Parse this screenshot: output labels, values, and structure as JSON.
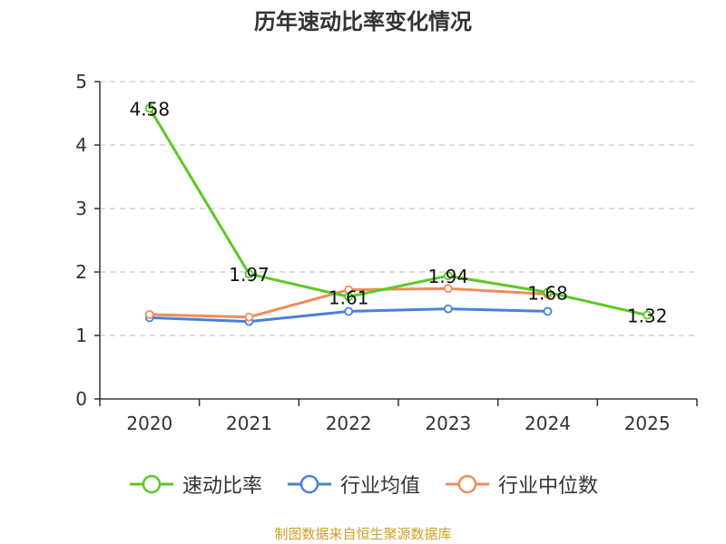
{
  "chart_data": {
    "type": "line",
    "title": "历年速动比率变化情况",
    "categories": [
      "2020",
      "2021",
      "2022",
      "2023",
      "2024",
      "2025"
    ],
    "ylim": [
      0,
      5
    ],
    "yticks": [
      "0",
      "1",
      "2",
      "3",
      "4",
      "5"
    ],
    "grid": true,
    "legend_position": "bottom",
    "series": [
      {
        "name": "速动比率",
        "color": "#5ac925",
        "values": [
          4.58,
          1.97,
          1.61,
          1.94,
          1.68,
          1.32
        ],
        "labels": [
          "4.58",
          "1.97",
          "1.61",
          "1.94",
          "1.68",
          "1.32"
        ]
      },
      {
        "name": "行业均值",
        "color": "#4a7fdd",
        "values": [
          1.28,
          1.22,
          1.38,
          1.42,
          1.38,
          null
        ]
      },
      {
        "name": "行业中位数",
        "color": "#f08b5a",
        "values": [
          1.33,
          1.29,
          1.72,
          1.74,
          1.65,
          null
        ]
      }
    ]
  },
  "source": "制图数据来自恒生聚源数据库"
}
